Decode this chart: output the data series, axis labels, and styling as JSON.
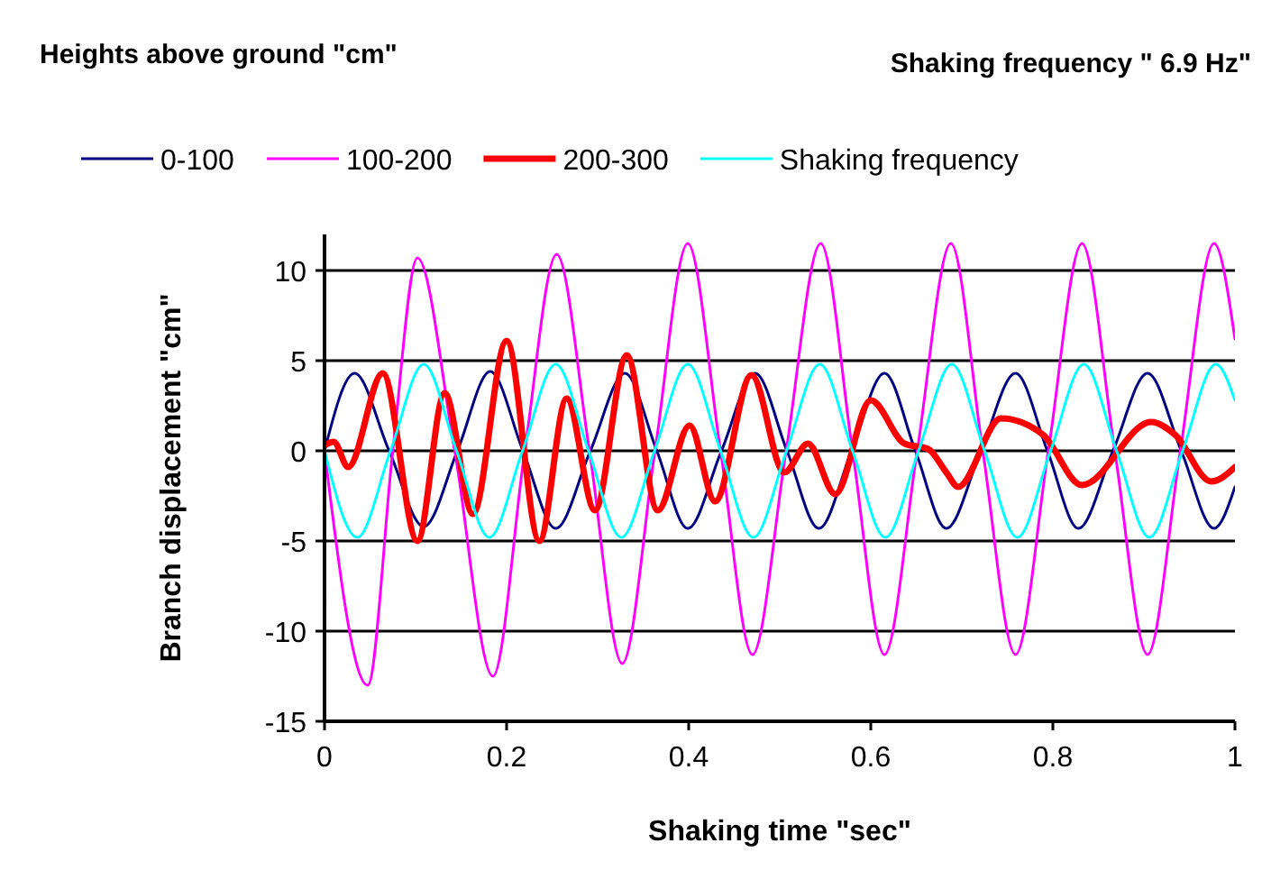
{
  "chart_data": {
    "type": "line",
    "title": "Heights above ground \"cm\"",
    "subtitle": "Shaking frequency \" 6.9 Hz\"",
    "xlabel": "Shaking time \"sec\"",
    "ylabel": "Branch displacement \"cm\"",
    "xlim": [
      0,
      1
    ],
    "xticks": [
      0,
      0.2,
      0.4,
      0.6,
      0.8,
      1
    ],
    "ylim": [
      -15,
      12
    ],
    "yticks": [
      -15,
      -10,
      -5,
      0,
      5,
      10
    ],
    "grid": "y",
    "legend": "top",
    "marker": "none",
    "line_style": "solid",
    "series": [
      {
        "name": "0-100",
        "color": "#000080",
        "x": [
          0,
          0.033,
          0.071,
          0.109,
          0.146,
          0.182,
          0.218,
          0.254,
          0.292,
          0.33,
          0.365,
          0.399,
          0.436,
          0.473,
          0.508,
          0.543,
          0.579,
          0.615,
          0.649,
          0.683,
          0.721,
          0.759,
          0.794,
          0.828,
          0.866,
          0.904,
          0.941,
          0.977,
          1
        ],
        "values": [
          0,
          4.3,
          0,
          -4.2,
          0,
          4.4,
          0,
          -4.3,
          0,
          4.3,
          0,
          -4.3,
          0,
          4.3,
          0,
          -4.3,
          0,
          4.3,
          0,
          -4.3,
          0,
          4.3,
          0,
          -4.3,
          0,
          4.3,
          0,
          -4.3,
          -2.0
        ]
      },
      {
        "name": "100-200",
        "color": "#ff00ff",
        "x": [
          0,
          0.0475,
          0.075,
          0.102,
          0.143,
          0.185,
          0.22,
          0.255,
          0.291,
          0.327,
          0.363,
          0.399,
          0.435,
          0.47,
          0.507,
          0.545,
          0.58,
          0.615,
          0.651,
          0.688,
          0.723,
          0.759,
          0.795,
          0.832,
          0.868,
          0.904,
          0.94,
          0.977,
          1
        ],
        "values": [
          0,
          -13,
          0,
          10.7,
          0,
          -12.5,
          0,
          10.9,
          0,
          -11.8,
          0,
          11.5,
          0,
          -11.3,
          0,
          11.5,
          0,
          -11.3,
          0,
          11.5,
          0,
          -11.3,
          0,
          11.5,
          0,
          -11.3,
          0,
          11.5,
          6.2
        ]
      },
      {
        "name": "200-300",
        "color": "#ff0000",
        "x": [
          0,
          0.01,
          0.026,
          0.064,
          0.102,
          0.132,
          0.163,
          0.2,
          0.236,
          0.266,
          0.297,
          0.332,
          0.366,
          0.401,
          0.429,
          0.469,
          0.505,
          0.531,
          0.561,
          0.6,
          0.637,
          0.663,
          0.683,
          0.696,
          0.743,
          0.789,
          0.832,
          0.908,
          0.934,
          0.974,
          1
        ],
        "values": [
          0.3,
          0.5,
          -0.9,
          4.3,
          -5,
          3.2,
          -3.5,
          6.1,
          -5,
          2.9,
          -3.3,
          5.3,
          -3.3,
          1.4,
          -2.8,
          4.2,
          -1.2,
          0.4,
          -2.4,
          2.8,
          0.4,
          0.1,
          -1.2,
          -2,
          1.8,
          0.9,
          -1.9,
          1.6,
          0.9,
          -1.7,
          -0.9
        ]
      },
      {
        "name": "Shaking frequency",
        "color": "#00ffff",
        "x": [
          0,
          0.036,
          0.0725,
          0.109,
          0.145,
          0.181,
          0.2175,
          0.254,
          0.29,
          0.326,
          0.3625,
          0.399,
          0.435,
          0.471,
          0.5075,
          0.544,
          0.58,
          0.616,
          0.6525,
          0.689,
          0.725,
          0.761,
          0.7975,
          0.834,
          0.87,
          0.906,
          0.9425,
          0.979,
          1
        ],
        "values": [
          0,
          -4.8,
          0,
          4.8,
          0,
          -4.8,
          0,
          4.8,
          0,
          -4.8,
          0,
          4.8,
          0,
          -4.8,
          0,
          4.8,
          0,
          -4.8,
          0,
          4.8,
          0,
          -4.8,
          0,
          4.8,
          0,
          -4.8,
          0,
          4.8,
          2.8
        ]
      }
    ]
  }
}
